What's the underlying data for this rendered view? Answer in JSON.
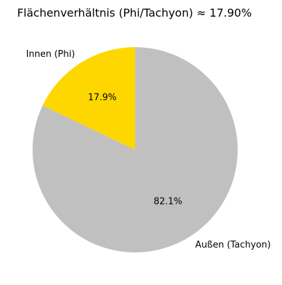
{
  "chart_data": {
    "type": "pie",
    "title": "Flächenverhältnis (Phi/Tachyon) ≈ 17.90%",
    "slices": [
      {
        "label": "Innen (Phi)",
        "value": 17.9,
        "pct_label": "17.9%",
        "color": "#ffd700"
      },
      {
        "label": "Außen (Tachyon)",
        "value": 82.1,
        "pct_label": "82.1%",
        "color": "#c0c0c0"
      }
    ],
    "start_angle_deg": 90,
    "direction": "counterclockwise",
    "legend": "none"
  }
}
